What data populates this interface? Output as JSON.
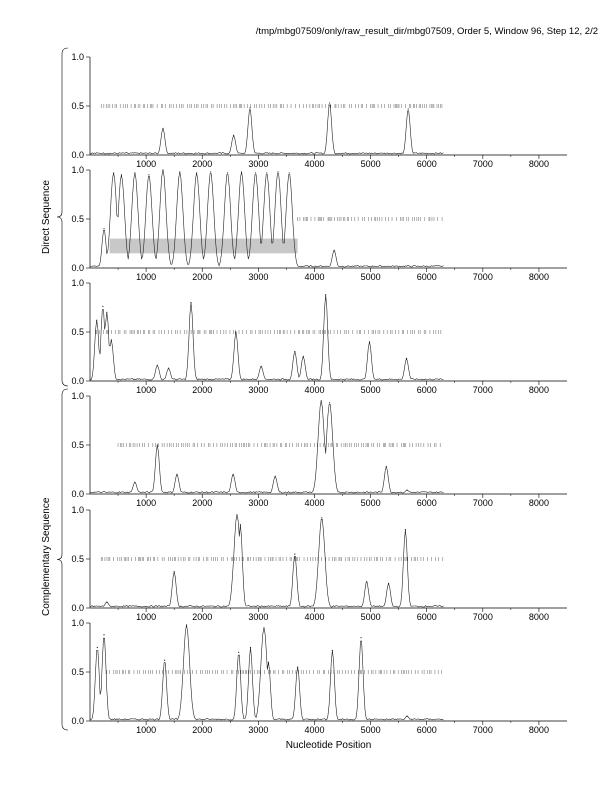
{
  "header": "/tmp/mbg07509/only/raw_result_dir/mbg07509, Order 5, Window 96, Step 12, 2/2",
  "groups": {
    "direct": "Direct Sequence",
    "complementary": "Complementary Sequence"
  },
  "chart_data": {
    "type": "line",
    "xlabel": "Nucleotide Position",
    "xlim": [
      0,
      8500
    ],
    "ylim": [
      0,
      1
    ],
    "x_ticks": [
      1000,
      2000,
      3000,
      4000,
      5000,
      6000,
      7000,
      8000
    ],
    "y_ticks": [
      0.0,
      0.5,
      1.0
    ],
    "y_tick_labels": [
      "0.0",
      "0.5",
      "1.0"
    ],
    "panels": [
      {
        "strand": "direct",
        "peaks": [
          [
            1300,
            0.27
          ],
          [
            2560,
            0.2
          ],
          [
            2850,
            0.48
          ],
          [
            4270,
            0.53
          ],
          [
            5670,
            0.47
          ]
        ],
        "tick_row_y": 0.5,
        "tick_range": [
          200,
          6300
        ]
      },
      {
        "strand": "direct",
        "peaks": [
          [
            250,
            0.4
          ],
          [
            420,
            0.97
          ],
          [
            560,
            0.95
          ],
          [
            800,
            0.97
          ],
          [
            1050,
            0.95
          ],
          [
            1300,
            1.0
          ],
          [
            1600,
            0.98
          ],
          [
            1900,
            0.97
          ],
          [
            2150,
            0.98
          ],
          [
            2450,
            0.97
          ],
          [
            2700,
            0.98
          ],
          [
            2950,
            0.97
          ],
          [
            3150,
            0.97
          ],
          [
            3350,
            0.98
          ],
          [
            3550,
            0.97
          ],
          [
            4350,
            0.18
          ]
        ],
        "tick_row_y": 0.5,
        "tick_range": [
          3700,
          6300
        ],
        "shaded_band": {
          "x": [
            350,
            3700
          ],
          "y": [
            0.15,
            0.3
          ]
        }
      },
      {
        "strand": "direct",
        "peaks": [
          [
            120,
            0.62
          ],
          [
            230,
            0.76
          ],
          [
            300,
            0.7
          ],
          [
            380,
            0.42
          ],
          [
            1200,
            0.16
          ],
          [
            1400,
            0.13
          ],
          [
            1800,
            0.8
          ],
          [
            2600,
            0.5
          ],
          [
            3050,
            0.15
          ],
          [
            3650,
            0.3
          ],
          [
            3800,
            0.25
          ],
          [
            4200,
            0.88
          ],
          [
            4980,
            0.4
          ],
          [
            5640,
            0.23
          ]
        ],
        "tick_row_y": 0.5,
        "tick_range": [
          100,
          6300
        ]
      },
      {
        "strand": "complementary",
        "peaks": [
          [
            800,
            0.12
          ],
          [
            1200,
            0.5
          ],
          [
            1550,
            0.2
          ],
          [
            2550,
            0.2
          ],
          [
            3300,
            0.18
          ],
          [
            4120,
            0.95
          ],
          [
            4270,
            0.93
          ],
          [
            5280,
            0.28
          ],
          [
            5650,
            0.04
          ]
        ],
        "tick_row_y": 0.5,
        "tick_range": [
          500,
          6300
        ]
      },
      {
        "strand": "complementary",
        "peaks": [
          [
            300,
            0.06
          ],
          [
            1500,
            0.37
          ],
          [
            2620,
            0.95
          ],
          [
            2680,
            0.85
          ],
          [
            3650,
            0.55
          ],
          [
            4130,
            0.92
          ],
          [
            4930,
            0.27
          ],
          [
            5320,
            0.25
          ],
          [
            5620,
            0.8
          ]
        ],
        "tick_row_y": 0.5,
        "tick_range": [
          200,
          6300
        ]
      },
      {
        "strand": "complementary",
        "peaks": [
          [
            130,
            0.75
          ],
          [
            250,
            0.88
          ],
          [
            1330,
            0.62
          ],
          [
            1720,
            0.98
          ],
          [
            2650,
            0.7
          ],
          [
            2860,
            0.75
          ],
          [
            3100,
            0.95
          ],
          [
            3180,
            0.6
          ],
          [
            3700,
            0.55
          ],
          [
            4320,
            0.72
          ],
          [
            4830,
            0.85
          ],
          [
            5650,
            0.05
          ]
        ],
        "tick_row_y": 0.5,
        "tick_range": [
          300,
          6300
        ]
      }
    ]
  }
}
